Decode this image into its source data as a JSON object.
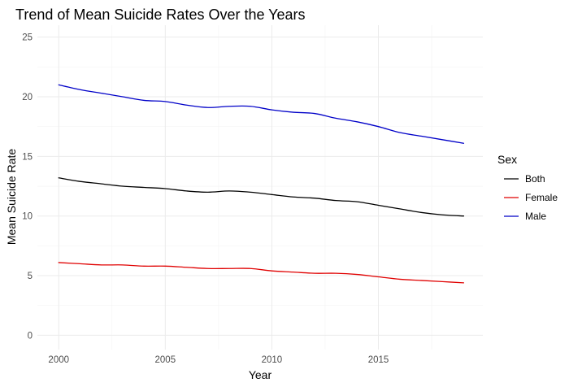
{
  "chart_data": {
    "type": "line",
    "title": "Trend of Mean Suicide Rates Over the Years",
    "xlabel": "Year",
    "ylabel": "Mean Suicide Rate",
    "xlim": [
      1999.0,
      2019.9
    ],
    "ylim": [
      -1.2,
      26.0
    ],
    "xticks": [
      2000,
      2005,
      2010,
      2015
    ],
    "yticks": [
      0,
      5,
      10,
      15,
      20,
      25
    ],
    "grid": true,
    "legend": {
      "title": "Sex",
      "position": "right"
    },
    "x": [
      2000,
      2001,
      2002,
      2003,
      2004,
      2005,
      2006,
      2007,
      2008,
      2009,
      2010,
      2011,
      2012,
      2013,
      2014,
      2015,
      2016,
      2017,
      2018,
      2019
    ],
    "series": [
      {
        "name": "Both",
        "color": "#000000",
        "values": [
          13.2,
          12.9,
          12.7,
          12.5,
          12.4,
          12.3,
          12.1,
          12.0,
          12.1,
          12.0,
          11.8,
          11.6,
          11.5,
          11.3,
          11.2,
          10.9,
          10.6,
          10.3,
          10.1,
          10.0
        ]
      },
      {
        "name": "Female",
        "color": "#e00000",
        "values": [
          6.1,
          6.0,
          5.9,
          5.9,
          5.8,
          5.8,
          5.7,
          5.6,
          5.6,
          5.6,
          5.4,
          5.3,
          5.2,
          5.2,
          5.1,
          4.9,
          4.7,
          4.6,
          4.5,
          4.4
        ]
      },
      {
        "name": "Male",
        "color": "#0000c8",
        "values": [
          21.0,
          20.6,
          20.3,
          20.0,
          19.7,
          19.6,
          19.3,
          19.1,
          19.2,
          19.2,
          18.9,
          18.7,
          18.6,
          18.2,
          17.9,
          17.5,
          17.0,
          16.7,
          16.4,
          16.1
        ]
      }
    ]
  }
}
